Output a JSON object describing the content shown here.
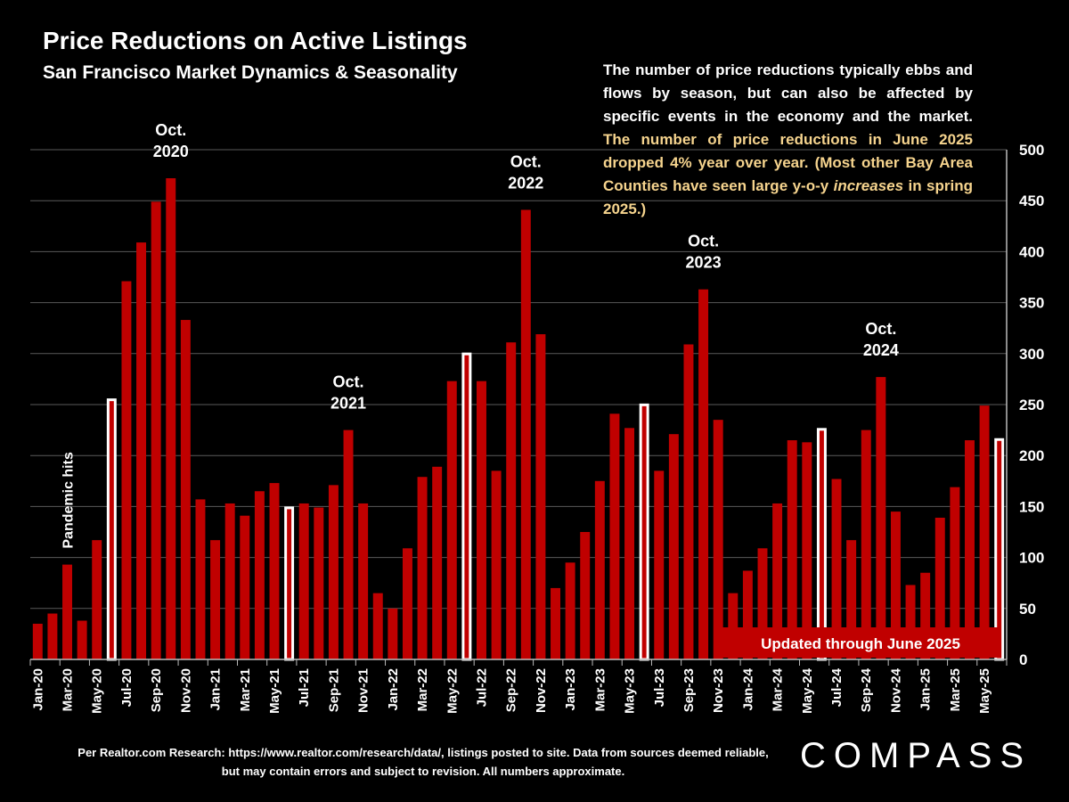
{
  "page": {
    "title": "Price Reductions on Active Listings",
    "subtitle": "San Francisco Market Dynamics & Seasonality",
    "description_parts": [
      "The number of price reductions typically ebbs and flows by season, but can also be affected by specific events in the economy and the market. ",
      "The number of price reductions in June 2025 dropped 4% year over year. (Most other Bay Area Counties have seen large y-o-y ",
      "increases",
      " in spring 2025.)"
    ],
    "footnote": "Per Realtor.com Research:  https://www.realtor.com/research/data/, listings posted to site. Data from sources deemed reliable, but may contain errors and subject to revision. All numbers approximate.",
    "brand": "COMPASS"
  },
  "chart_data": {
    "type": "bar",
    "y_axis_position": "right",
    "ylim": [
      0,
      500
    ],
    "yticks": [
      0,
      50,
      100,
      150,
      200,
      250,
      300,
      350,
      400,
      450,
      500
    ],
    "grid": true,
    "bar_color": "#c00000",
    "highlight_color": "#ffffff",
    "categories": [
      "Jan-20",
      "Feb-20",
      "Mar-20",
      "Apr-20",
      "May-20",
      "Jun-20",
      "Jul-20",
      "Aug-20",
      "Sep-20",
      "Oct-20",
      "Nov-20",
      "Dec-20",
      "Jan-21",
      "Feb-21",
      "Mar-21",
      "Apr-21",
      "May-21",
      "Jun-21",
      "Jul-21",
      "Aug-21",
      "Sep-21",
      "Oct-21",
      "Nov-21",
      "Dec-21",
      "Jan-22",
      "Feb-22",
      "Mar-22",
      "Apr-22",
      "May-22",
      "Jun-22",
      "Jul-22",
      "Aug-22",
      "Sep-22",
      "Oct-22",
      "Nov-22",
      "Dec-22",
      "Jan-23",
      "Feb-23",
      "Mar-23",
      "Apr-23",
      "May-23",
      "Jun-23",
      "Jul-23",
      "Aug-23",
      "Sep-23",
      "Oct-23",
      "Nov-23",
      "Dec-23",
      "Jan-24",
      "Feb-24",
      "Mar-24",
      "Apr-24",
      "May-24",
      "Jun-24",
      "Jul-24",
      "Aug-24",
      "Sep-24",
      "Oct-24",
      "Nov-24",
      "Dec-24",
      "Jan-25",
      "Feb-25",
      "Mar-25",
      "Apr-25",
      "May-25",
      "Jun-25"
    ],
    "values": [
      35,
      45,
      93,
      38,
      117,
      256,
      371,
      409,
      449,
      472,
      333,
      157,
      117,
      153,
      141,
      165,
      173,
      150,
      153,
      149,
      171,
      225,
      153,
      65,
      50,
      109,
      179,
      189,
      273,
      301,
      273,
      185,
      311,
      441,
      319,
      70,
      95,
      125,
      175,
      241,
      227,
      251,
      185,
      221,
      309,
      363,
      235,
      65,
      87,
      109,
      153,
      215,
      213,
      227,
      177,
      117,
      225,
      277,
      145,
      73,
      85,
      139,
      169,
      215,
      249,
      217
    ],
    "highlight_categories": [
      "Jun-20",
      "Jun-21",
      "Jun-22",
      "Jun-23",
      "Jun-24",
      "Jun-25"
    ],
    "x_tick_labels": [
      "Jan-20",
      "Mar-20",
      "May-20",
      "Jul-20",
      "Sep-20",
      "Nov-20",
      "Jan-21",
      "Mar-21",
      "May-21",
      "Jul-21",
      "Sep-21",
      "Nov-21",
      "Jan-22",
      "Mar-22",
      "May-22",
      "Jul-22",
      "Sep-22",
      "Nov-22",
      "Jan-23",
      "Mar-23",
      "May-23",
      "Jul-23",
      "Sep-23",
      "Nov-23",
      "Jan-24",
      "Mar-24",
      "May-24",
      "Jul-24",
      "Sep-24",
      "Nov-24",
      "Jan-25",
      "Mar-25",
      "May-25"
    ],
    "annotations": [
      {
        "category": "Oct-20",
        "lines": [
          "Oct.",
          "2020"
        ]
      },
      {
        "category": "Oct-21",
        "lines": [
          "Oct.",
          "2021"
        ]
      },
      {
        "category": "Oct-22",
        "lines": [
          "Oct.",
          "2022"
        ]
      },
      {
        "category": "Oct-23",
        "lines": [
          "Oct.",
          "2023"
        ]
      },
      {
        "category": "Oct-24",
        "lines": [
          "Oct.",
          "2024"
        ]
      }
    ],
    "pandemic_label": {
      "category": "Mar-20",
      "text": "Pandemic hits"
    },
    "update_badge": {
      "text": "Updated through June 2025",
      "color": "#c00000"
    }
  }
}
